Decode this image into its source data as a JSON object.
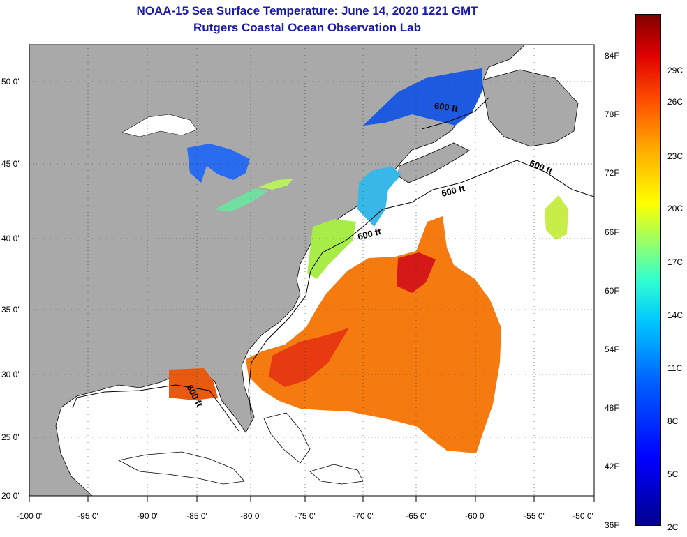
{
  "title": {
    "line1": "NOAA-15 Sea Surface Temperature:  June 14, 2020 1221 GMT",
    "line2": "Rutgers Coastal Ocean Observation Lab"
  },
  "axes": {
    "lat_labels": [
      "50 0'",
      "45 0'",
      "40 0'",
      "35 0'",
      "30 0'",
      "25 0'",
      "20 0'"
    ],
    "lon_labels": [
      "-100 0'",
      "-95 0'",
      "-90 0'",
      "-85 0'",
      "-80 0'",
      "-75 0'",
      "-70 0'",
      "-65 0'",
      "-60 0'",
      "-55 0'",
      "-50 0'"
    ]
  },
  "contour_labels": [
    "600 ft",
    "600 ft",
    "600 ft",
    "600 ft",
    "600 ft"
  ],
  "colorbar": {
    "fahrenheit": [
      "84F",
      "78F",
      "72F",
      "66F",
      "60F",
      "54F",
      "48F",
      "42F",
      "36F"
    ],
    "celsius": [
      "29C",
      "26C",
      "23C",
      "20C",
      "17C",
      "14C",
      "11C",
      "8C",
      "5C",
      "2C"
    ]
  },
  "colors": {
    "land": "#a9a9a9",
    "ocean_no_data": "#ffffff",
    "title": "#1a1aa8"
  }
}
